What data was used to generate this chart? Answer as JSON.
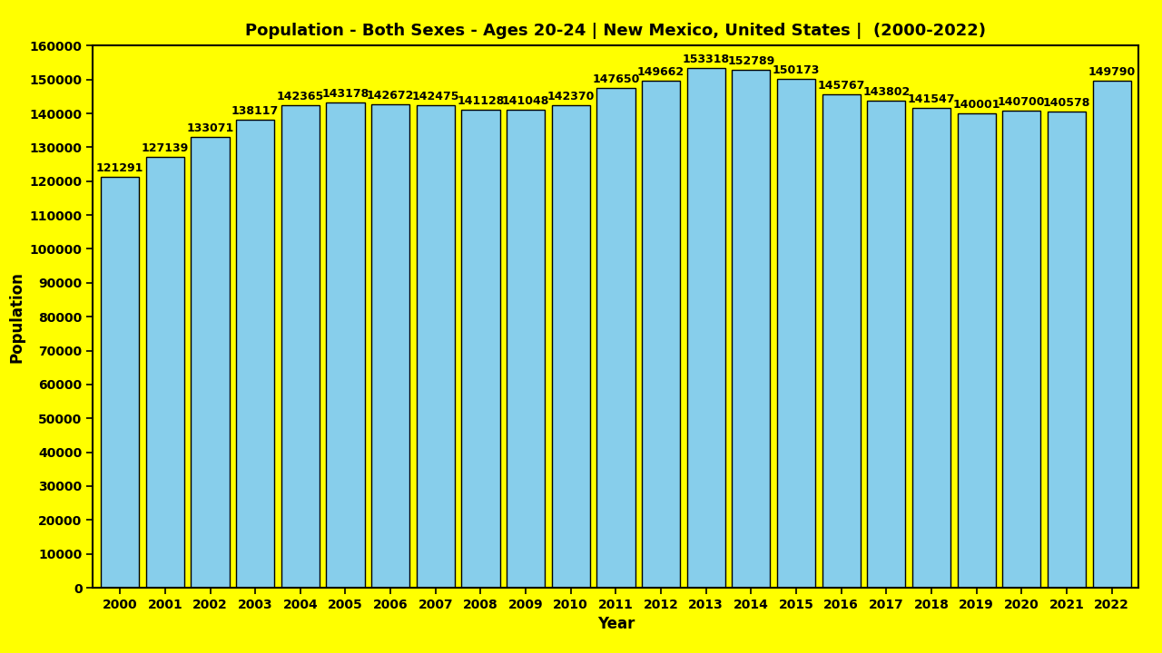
{
  "title": "Population - Both Sexes - Ages 20-24 | New Mexico, United States |  (2000-2022)",
  "xlabel": "Year",
  "ylabel": "Population",
  "background_color": "#FFFF00",
  "bar_color": "#87CEEB",
  "bar_edge_color": "#000000",
  "title_color": "#000000",
  "label_color": "#000000",
  "years": [
    2000,
    2001,
    2002,
    2003,
    2004,
    2005,
    2006,
    2007,
    2008,
    2009,
    2010,
    2011,
    2012,
    2013,
    2014,
    2015,
    2016,
    2017,
    2018,
    2019,
    2020,
    2021,
    2022
  ],
  "values": [
    121291,
    127139,
    133071,
    138117,
    142365,
    143178,
    142672,
    142475,
    141128,
    141048,
    142370,
    147650,
    149662,
    153318,
    152789,
    150173,
    145767,
    143802,
    141547,
    140001,
    140700,
    140578,
    149790
  ],
  "ylim": [
    0,
    160000
  ],
  "ytick_step": 10000,
  "title_fontsize": 13,
  "axis_label_fontsize": 12,
  "tick_fontsize": 10,
  "bar_label_fontsize": 9,
  "bar_width": 0.85
}
